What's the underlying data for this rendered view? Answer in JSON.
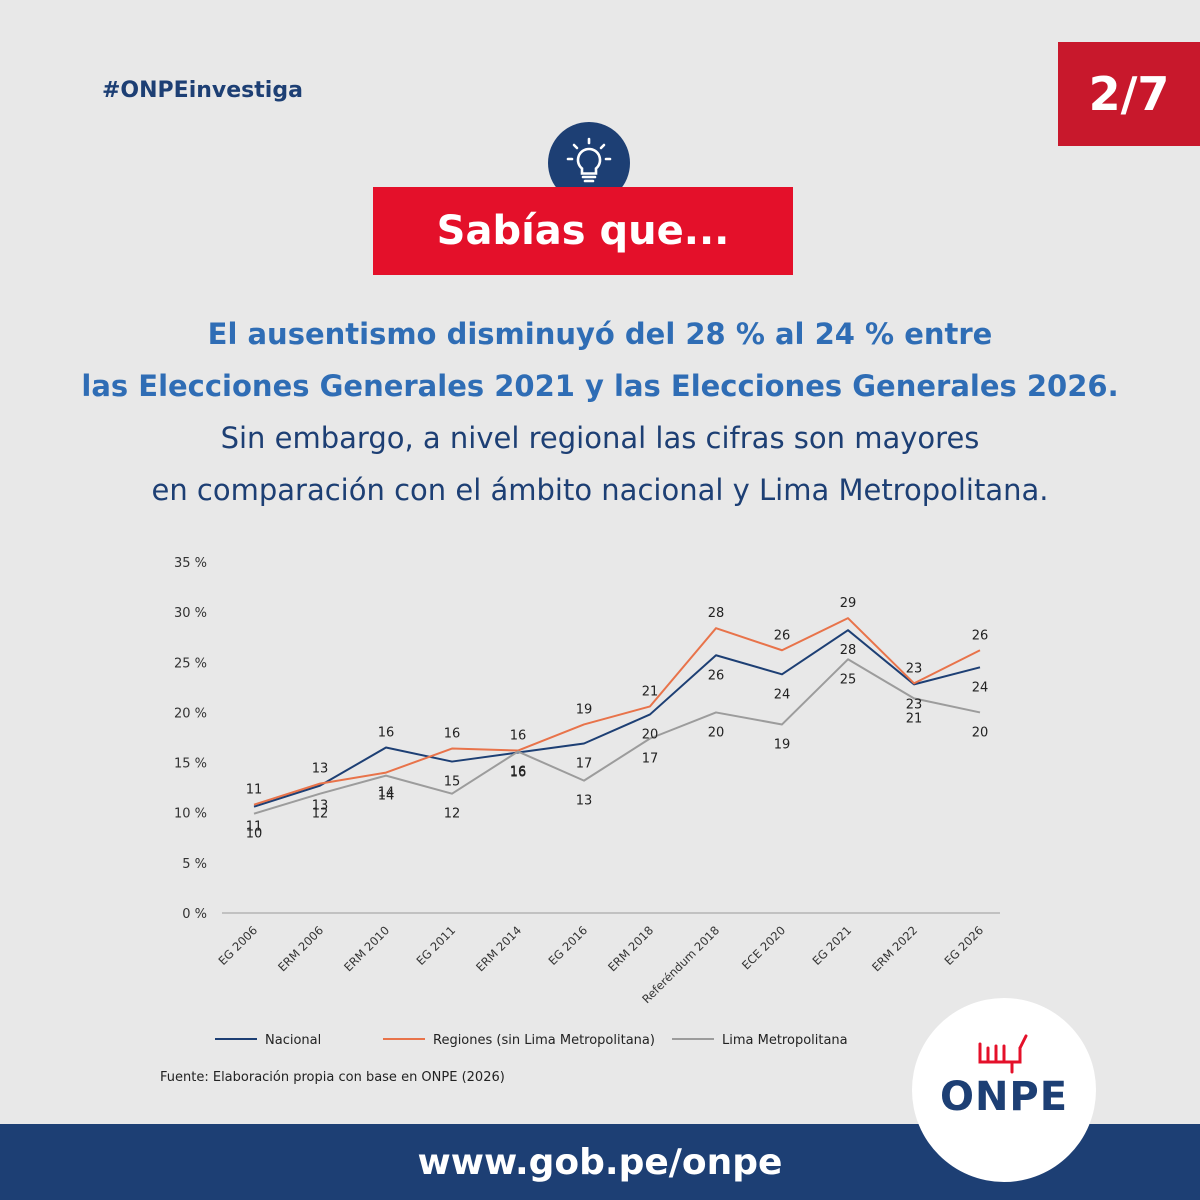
{
  "header": {
    "hashtag": "#ONPEinvestiga",
    "page_indicator": "2/7",
    "banner": "Sabías que...",
    "icon": "lightbulb-icon"
  },
  "text": {
    "headline_1": "El ausentismo disminuyó del 28 % al 24 % entre",
    "headline_2": "las Elecciones Generales 2021 y las Elecciones Generales 2026.",
    "body_1": "Sin embargo, a nivel regional las cifras son mayores",
    "body_2": "en comparación con el ámbito nacional y Lima Metropolitana."
  },
  "chart_data": {
    "type": "line",
    "categories": [
      "EG 2006",
      "ERM 2006",
      "ERM 2010",
      "EG 2011",
      "ERM 2014",
      "EG 2016",
      "ERM 2018",
      "Referéndum 2018",
      "ECE 2020",
      "EG 2021",
      "ERM 2022",
      "EG 2026"
    ],
    "ylim": [
      0,
      35
    ],
    "yticks": [
      0,
      5,
      10,
      15,
      20,
      25,
      30,
      35
    ],
    "ytick_suffix": " %",
    "grid": false,
    "legend": "bottom",
    "series": [
      {
        "name": "Nacional",
        "color": "#1d3f74",
        "values": [
          10.6,
          12.7,
          16.5,
          15.1,
          16.0,
          16.9,
          19.8,
          25.7,
          23.8,
          28.2,
          22.8,
          24.5
        ],
        "labels": [
          "11",
          "13",
          "16",
          "15",
          "16",
          "17",
          "20",
          "26",
          "24",
          "28",
          "23",
          "24"
        ]
      },
      {
        "name": "Regiones (sin Lima Metropolitana)",
        "color": "#e8734a",
        "values": [
          10.8,
          12.9,
          14.0,
          16.4,
          16.2,
          18.8,
          20.6,
          28.4,
          26.2,
          29.4,
          22.9,
          26.2
        ],
        "labels": [
          "11",
          "13",
          "14",
          "16",
          "16",
          "19",
          "21",
          "28",
          "26",
          "29",
          "23",
          "26"
        ]
      },
      {
        "name": "Lima Metropolitana",
        "color": "#9c9c9c",
        "values": [
          9.9,
          11.9,
          13.7,
          11.9,
          16.1,
          13.2,
          17.4,
          20.0,
          18.8,
          25.3,
          21.4,
          20.0
        ],
        "labels": [
          "10",
          "12",
          "14",
          "12",
          "16",
          "13",
          "17",
          "20",
          "19",
          "25",
          "21",
          "20"
        ]
      }
    ],
    "source": "Fuente: Elaboración propia con base en ONPE (2026)"
  },
  "footer": {
    "url": "www.gob.pe/onpe",
    "logo_text": "ONPE"
  }
}
